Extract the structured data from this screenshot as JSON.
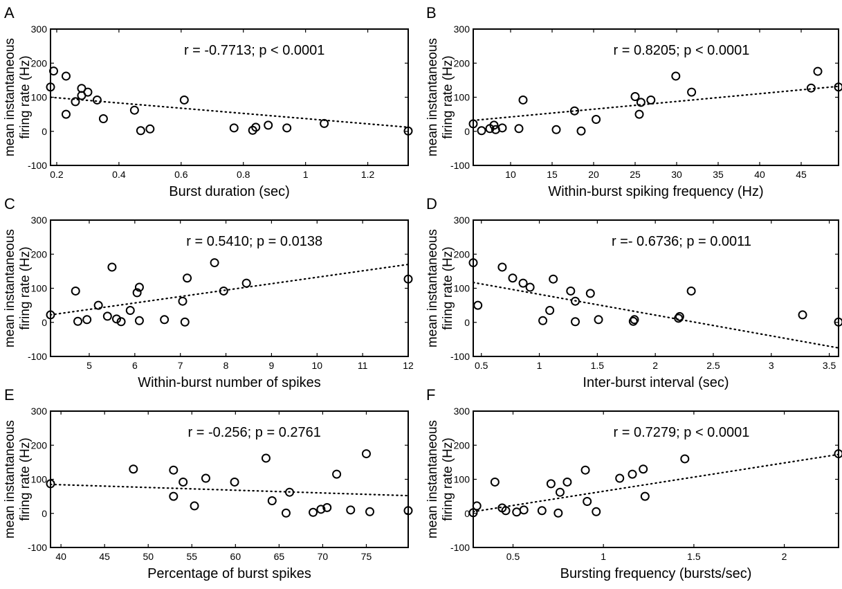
{
  "chart_data": [
    {
      "panel": "A",
      "type": "scatter",
      "annotation": "r = -0.7713; p < 0.0001",
      "xlabel": "Burst duration (sec)",
      "ylabel_lines": [
        "mean instantaneous",
        "firing rate (Hz)"
      ],
      "xlim": [
        0.18,
        1.33
      ],
      "ylim": [
        -100,
        300
      ],
      "xticks": [
        0.2,
        0.4,
        0.6,
        0.8,
        1,
        1.2
      ],
      "xtick_labels": [
        "0.2",
        "0.4",
        "0.6",
        "0.8",
        "1",
        "1.2"
      ],
      "yticks": [
        -100,
        0,
        100,
        200,
        300
      ],
      "ytick_labels": [
        "-100",
        "0",
        "100",
        "200",
        "300"
      ],
      "points": [
        [
          0.18,
          130
        ],
        [
          0.19,
          177
        ],
        [
          0.23,
          162
        ],
        [
          0.23,
          50
        ],
        [
          0.26,
          87
        ],
        [
          0.28,
          126
        ],
        [
          0.28,
          105
        ],
        [
          0.3,
          115
        ],
        [
          0.33,
          92
        ],
        [
          0.35,
          37
        ],
        [
          0.45,
          62
        ],
        [
          0.47,
          2
        ],
        [
          0.5,
          7
        ],
        [
          0.61,
          92
        ],
        [
          0.77,
          10
        ],
        [
          0.83,
          3
        ],
        [
          0.84,
          12
        ],
        [
          0.88,
          18
        ],
        [
          0.94,
          10
        ],
        [
          1.06,
          23
        ],
        [
          1.33,
          1
        ]
      ],
      "fit_line": [
        [
          0.18,
          100
        ],
        [
          1.33,
          12
        ]
      ]
    },
    {
      "panel": "B",
      "type": "scatter",
      "annotation": "r = 0.8205; p < 0.0001",
      "xlabel": "Within-burst spiking frequency (Hz)",
      "ylabel_lines": [
        "mean instantaneous",
        "firing rate (Hz)"
      ],
      "xlim": [
        5.5,
        49.5
      ],
      "ylim": [
        -100,
        300
      ],
      "xticks": [
        10,
        15,
        20,
        25,
        30,
        35,
        40,
        45
      ],
      "xtick_labels": [
        "10",
        "15",
        "20",
        "25",
        "30",
        "35",
        "40",
        "45"
      ],
      "yticks": [
        -100,
        0,
        100,
        200,
        300
      ],
      "ytick_labels": [
        "-100",
        "0",
        "100",
        "200",
        "300"
      ],
      "points": [
        [
          5.5,
          22
        ],
        [
          6.5,
          2
        ],
        [
          7.5,
          8
        ],
        [
          8,
          18
        ],
        [
          8.2,
          5
        ],
        [
          9,
          10
        ],
        [
          11,
          8
        ],
        [
          11.5,
          92
        ],
        [
          15.5,
          5
        ],
        [
          17.7,
          60
        ],
        [
          18.5,
          1
        ],
        [
          20.3,
          35
        ],
        [
          25,
          102
        ],
        [
          25.5,
          50
        ],
        [
          25.7,
          85
        ],
        [
          26.9,
          92
        ],
        [
          29.9,
          162
        ],
        [
          31.8,
          115
        ],
        [
          46.2,
          127
        ],
        [
          47,
          176
        ],
        [
          49.5,
          130
        ]
      ],
      "fit_line": [
        [
          5.5,
          32
        ],
        [
          49.5,
          132
        ]
      ]
    },
    {
      "panel": "C",
      "type": "scatter",
      "annotation": "r = 0.5410; p = 0.0138",
      "xlabel": "Within-burst number of spikes",
      "ylabel_lines": [
        "mean instantaneous",
        "firing rate (Hz)"
      ],
      "xlim": [
        4.15,
        12
      ],
      "ylim": [
        -100,
        300
      ],
      "xticks": [
        5,
        6,
        7,
        8,
        9,
        10,
        11,
        12
      ],
      "xtick_labels": [
        "5",
        "6",
        "7",
        "8",
        "9",
        "10",
        "11",
        "12"
      ],
      "yticks": [
        -100,
        0,
        100,
        200,
        300
      ],
      "ytick_labels": [
        "-100",
        "0",
        "100",
        "200",
        "300"
      ],
      "points": [
        [
          4.15,
          22
        ],
        [
          4.7,
          92
        ],
        [
          4.75,
          3
        ],
        [
          4.95,
          8
        ],
        [
          5.2,
          50
        ],
        [
          5.4,
          18
        ],
        [
          5.5,
          162
        ],
        [
          5.6,
          10
        ],
        [
          5.7,
          2
        ],
        [
          5.9,
          35
        ],
        [
          6.05,
          87
        ],
        [
          6.1,
          103
        ],
        [
          6.1,
          5
        ],
        [
          6.65,
          8
        ],
        [
          7.05,
          62
        ],
        [
          7.1,
          1
        ],
        [
          7.15,
          130
        ],
        [
          7.75,
          175
        ],
        [
          7.95,
          92
        ],
        [
          8.45,
          115
        ],
        [
          12,
          127
        ]
      ],
      "fit_line": [
        [
          4.15,
          22
        ],
        [
          12,
          170
        ]
      ]
    },
    {
      "panel": "D",
      "type": "scatter",
      "annotation": "r =- 0.6736; p = 0.0011",
      "xlabel": "Inter-burst interval (sec)",
      "ylabel_lines": [
        "mean instantaneous",
        "firing rate (Hz)"
      ],
      "xlim": [
        0.43,
        3.58
      ],
      "ylim": [
        -100,
        300
      ],
      "xticks": [
        0.5,
        1,
        1.5,
        2,
        2.5,
        3,
        3.5
      ],
      "xtick_labels": [
        "0.5",
        "1",
        "1.5",
        "2",
        "2.5",
        "3",
        "3.5"
      ],
      "yticks": [
        -100,
        0,
        100,
        200,
        300
      ],
      "ytick_labels": [
        "-100",
        "0",
        "100",
        "200",
        "300"
      ],
      "points": [
        [
          0.43,
          175
        ],
        [
          0.47,
          50
        ],
        [
          0.68,
          162
        ],
        [
          0.77,
          130
        ],
        [
          0.86,
          115
        ],
        [
          0.92,
          103
        ],
        [
          1.03,
          5
        ],
        [
          1.09,
          35
        ],
        [
          1.12,
          127
        ],
        [
          1.27,
          92
        ],
        [
          1.31,
          62
        ],
        [
          1.31,
          2
        ],
        [
          1.44,
          85
        ],
        [
          1.51,
          8
        ],
        [
          1.81,
          3
        ],
        [
          1.82,
          8
        ],
        [
          2.2,
          12
        ],
        [
          2.21,
          17
        ],
        [
          2.31,
          92
        ],
        [
          3.27,
          22
        ],
        [
          3.58,
          1
        ]
      ],
      "fit_line": [
        [
          0.43,
          117
        ],
        [
          3.58,
          -75
        ]
      ]
    },
    {
      "panel": "E",
      "type": "scatter",
      "annotation": "r = -0.256; p = 0.2761",
      "xlabel": "Percentage of burst spikes",
      "ylabel_lines": [
        "mean instantaneous",
        "firing rate (Hz)"
      ],
      "xlim": [
        38.8,
        79.8
      ],
      "ylim": [
        -100,
        300
      ],
      "xticks": [
        40,
        45,
        50,
        55,
        60,
        65,
        70,
        75
      ],
      "xtick_labels": [
        "40",
        "45",
        "50",
        "55",
        "60",
        "65",
        "70",
        "75"
      ],
      "yticks": [
        -100,
        0,
        100,
        200,
        300
      ],
      "ytick_labels": [
        "-100",
        "0",
        "100",
        "200",
        "300"
      ],
      "points": [
        [
          38.8,
          87
        ],
        [
          48.3,
          130
        ],
        [
          52.9,
          127
        ],
        [
          52.9,
          50
        ],
        [
          54,
          92
        ],
        [
          55.3,
          22
        ],
        [
          56.6,
          103
        ],
        [
          59.9,
          92
        ],
        [
          63.5,
          162
        ],
        [
          64.2,
          37
        ],
        [
          65.8,
          1
        ],
        [
          66.2,
          62
        ],
        [
          68.9,
          3
        ],
        [
          69.8,
          12
        ],
        [
          70.5,
          17
        ],
        [
          71.6,
          115
        ],
        [
          73.2,
          10
        ],
        [
          75,
          175
        ],
        [
          75.4,
          5
        ],
        [
          79.8,
          8
        ]
      ],
      "fit_line": [
        [
          38.8,
          85
        ],
        [
          79.8,
          52
        ]
      ]
    },
    {
      "panel": "F",
      "type": "scatter",
      "annotation": "r = 0.7279; p < 0.0001",
      "xlabel": "Bursting frequency (bursts/sec)",
      "ylabel_lines": [
        "mean instantaneous",
        "firing rate (Hz)"
      ],
      "xlim": [
        0.28,
        2.3
      ],
      "ylim": [
        -100,
        300
      ],
      "xticks": [
        0.5,
        1,
        1.5,
        2
      ],
      "xtick_labels": [
        "0.5",
        "1",
        "1.5",
        "2"
      ],
      "yticks": [
        -100,
        0,
        100,
        200,
        300
      ],
      "ytick_labels": [
        "-100",
        "0",
        "100",
        "200",
        "300"
      ],
      "points": [
        [
          0.28,
          2
        ],
        [
          0.3,
          22
        ],
        [
          0.4,
          92
        ],
        [
          0.44,
          16
        ],
        [
          0.46,
          8
        ],
        [
          0.52,
          4
        ],
        [
          0.56,
          10
        ],
        [
          0.66,
          8
        ],
        [
          0.71,
          87
        ],
        [
          0.75,
          1
        ],
        [
          0.76,
          62
        ],
        [
          0.8,
          92
        ],
        [
          0.9,
          127
        ],
        [
          0.91,
          35
        ],
        [
          0.96,
          5
        ],
        [
          1.09,
          103
        ],
        [
          1.16,
          115
        ],
        [
          1.22,
          130
        ],
        [
          1.23,
          50
        ],
        [
          1.45,
          160
        ],
        [
          2.3,
          175
        ]
      ],
      "fit_line": [
        [
          0.28,
          5
        ],
        [
          2.3,
          173
        ]
      ]
    }
  ]
}
